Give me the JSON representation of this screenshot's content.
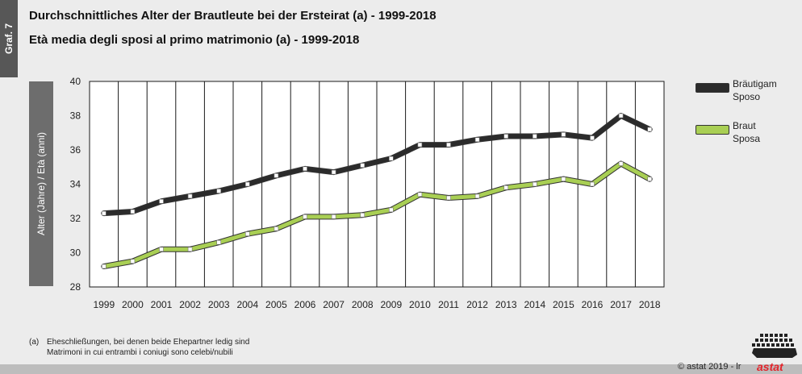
{
  "side_tab": "Graf. 7",
  "title_de": "Durchschnittliches Alter der Brautleute bei der Ersteirat (a) - 1999-2018",
  "title_it": "Età media degli sposi al primo matrimonio (a) - 1999-2018",
  "footnote": {
    "marker": "(a)",
    "line_de": "Eheschließungen, bei denen beide Ehepartner ledig sind",
    "line_it": "Matrimoni in cui entrambi i coniugi sono celebi/nubili"
  },
  "copyright": "© astat 2019 - lr",
  "logo_text": "astat",
  "colors": {
    "groom": "#2b2b2b",
    "bride": "#a9cf54",
    "grid": "#1a1a1a",
    "axis_label_box": "#6d6d6d",
    "logo_red": "#e3242b"
  },
  "chart_data": {
    "type": "line",
    "ylabel": "Alter (Jahre) / Età (anni)",
    "xlabel": "",
    "x": [
      "1999",
      "2000",
      "2001",
      "2002",
      "2003",
      "2004",
      "2005",
      "2006",
      "2007",
      "2008",
      "2009",
      "2010",
      "2011",
      "2012",
      "2013",
      "2014",
      "2015",
      "2016",
      "2017",
      "2018"
    ],
    "ylim": [
      28,
      40
    ],
    "yticks": [
      28,
      30,
      32,
      34,
      36,
      38,
      40
    ],
    "grid": "vertical gridlines per year",
    "legend_position": "right",
    "series": [
      {
        "name": [
          "Bräutigam",
          "Sposo"
        ],
        "color": "#2b2b2b",
        "values": [
          32.3,
          32.4,
          33.0,
          33.3,
          33.6,
          34.0,
          34.5,
          34.9,
          34.7,
          35.1,
          35.5,
          36.3,
          36.3,
          36.6,
          36.8,
          36.8,
          36.9,
          36.7,
          38.0,
          37.2
        ]
      },
      {
        "name": [
          "Braut",
          "Sposa"
        ],
        "color": "#a9cf54",
        "values": [
          29.2,
          29.5,
          30.2,
          30.2,
          30.6,
          31.1,
          31.4,
          32.1,
          32.1,
          32.2,
          32.5,
          33.4,
          33.2,
          33.3,
          33.8,
          34.0,
          34.3,
          34.0,
          35.2,
          34.3
        ]
      }
    ]
  }
}
